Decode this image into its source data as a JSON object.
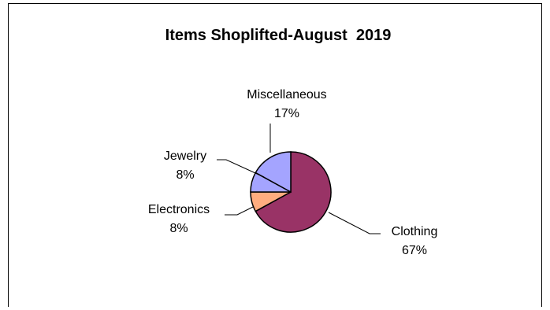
{
  "chart_data": {
    "type": "pie",
    "title": "Items Shoplifted-August  2019",
    "slices": [
      {
        "label": "Clothing",
        "value": 67,
        "value_label": "67%",
        "color": "#993366"
      },
      {
        "label": "Electronics",
        "value": 8,
        "value_label": "8%",
        "color": "#ffad7f"
      },
      {
        "label": "Jewelry",
        "value": 8,
        "value_label": "8%",
        "color": "#a4a4ff"
      },
      {
        "label": "Miscellaneous",
        "value": 17,
        "value_label": "17%",
        "color": "#a4a4ff"
      }
    ],
    "start_angle_deg": 0,
    "direction": "clockwise",
    "slice_border_color": "#000000",
    "legend": "none"
  }
}
